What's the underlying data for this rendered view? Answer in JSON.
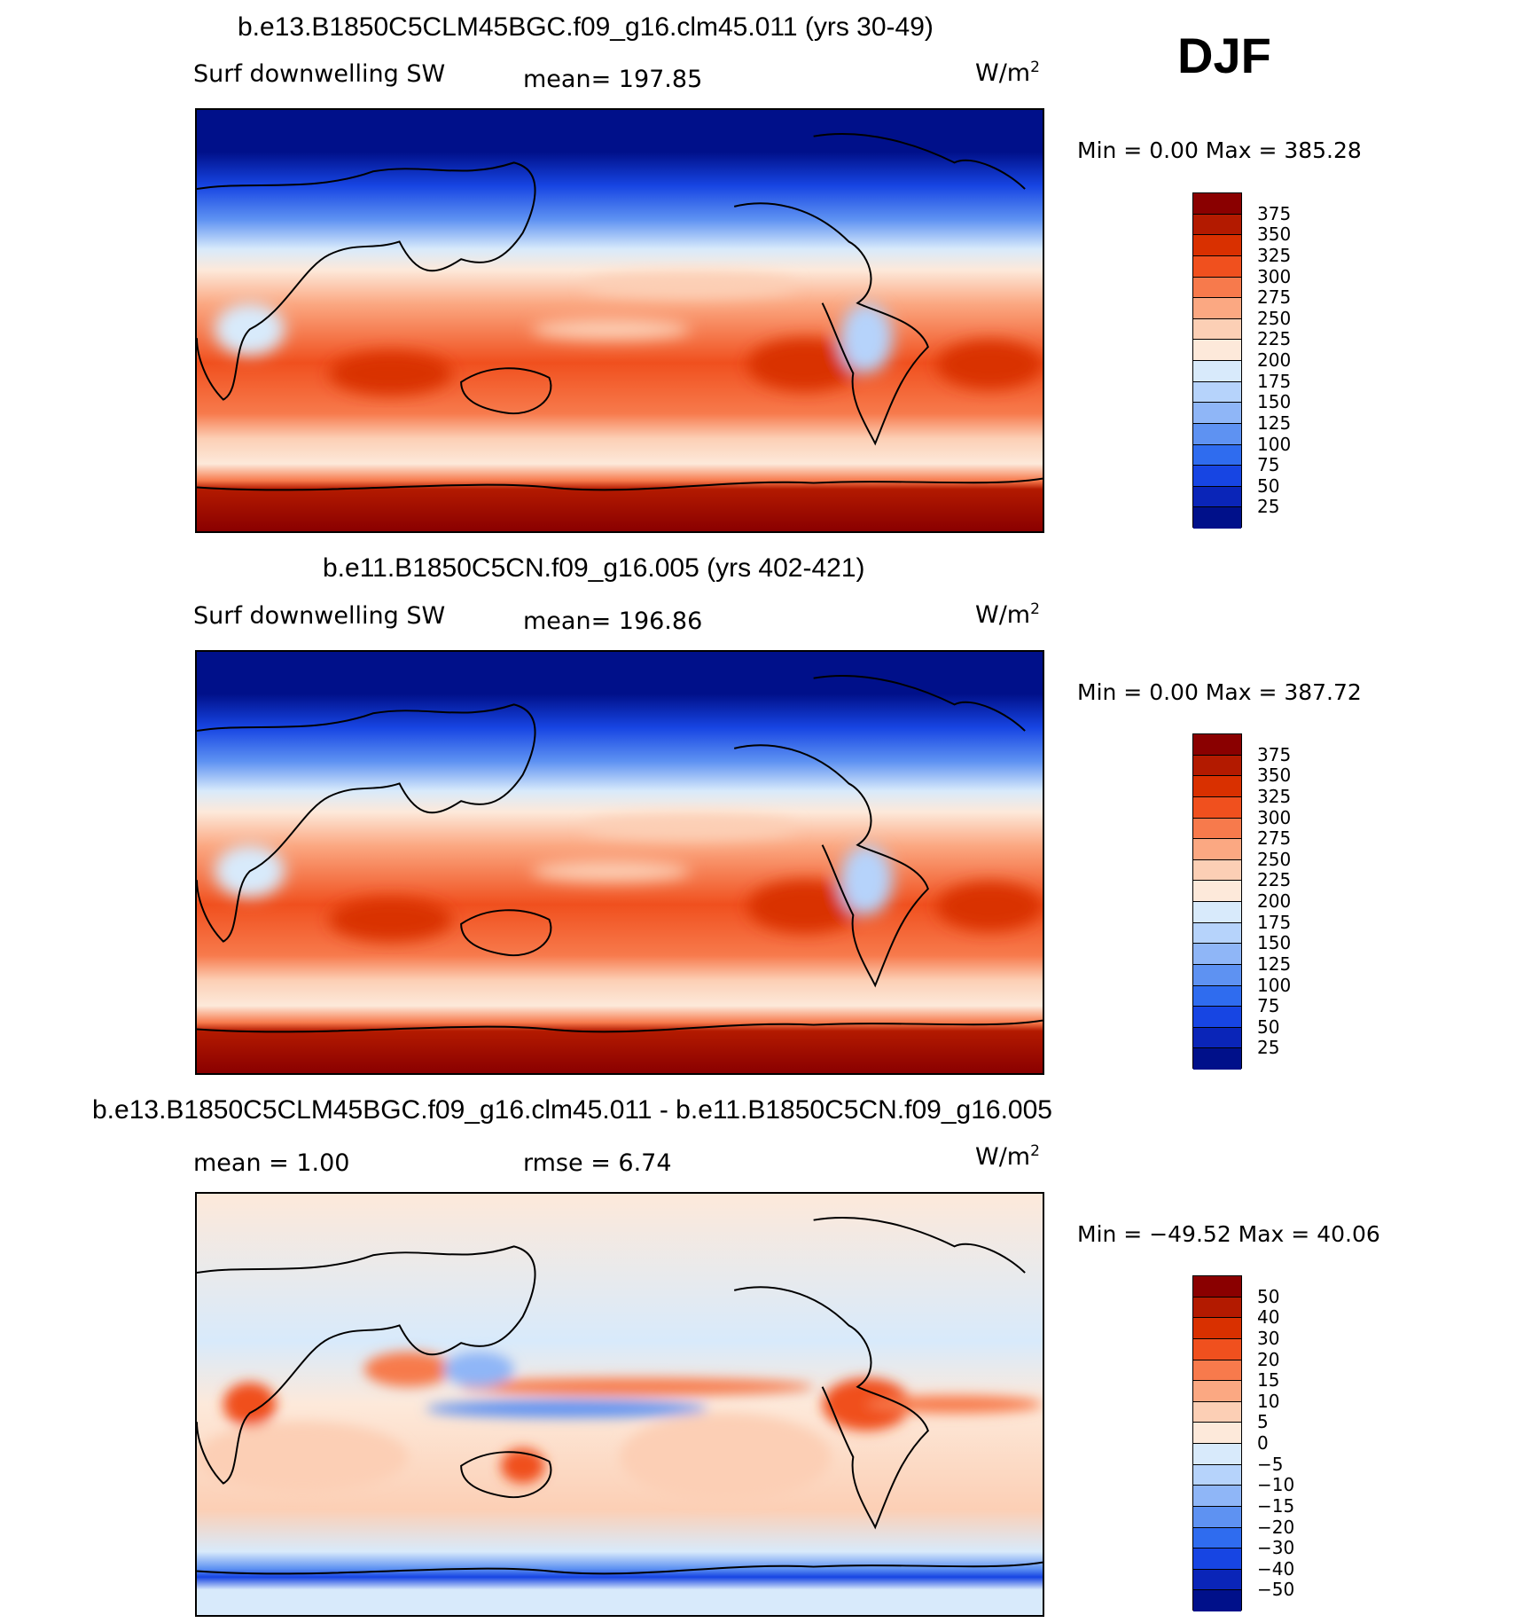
{
  "season": "DJF",
  "panels": [
    {
      "id": "case1",
      "title": "b.e13.B1850C5CLM45BGC.f09_g16.clm45.011 (yrs 30-49)",
      "variable": "Surf downwelling SW",
      "stat1": "mean=  197.85",
      "stat2": "",
      "unit": "W/m",
      "unit_sup": "2",
      "minmax": "Min =     0.00  Max  =  385.28",
      "levels": [
        "375",
        "350",
        "325",
        "300",
        "275",
        "250",
        "225",
        "200",
        "175",
        "150",
        "125",
        "100",
        "75",
        "50",
        "25"
      ],
      "colors": [
        "#8a0000",
        "#b31a00",
        "#d93000",
        "#f0501e",
        "#f77a4c",
        "#fba882",
        "#fccfb5",
        "#fde9da",
        "#d8eafb",
        "#b6d3fb",
        "#8fb6f7",
        "#5e92f2",
        "#2f6cef",
        "#1745e3",
        "#0a25b8",
        "#00108a"
      ]
    },
    {
      "id": "case2",
      "title": "b.e11.B1850C5CN.f09_g16.005 (yrs 402-421)",
      "variable": "Surf downwelling SW",
      "stat1": "mean=  196.86",
      "stat2": "",
      "unit": "W/m",
      "unit_sup": "2",
      "minmax": "Min =     0.00  Max  =  387.72",
      "levels": [
        "375",
        "350",
        "325",
        "300",
        "275",
        "250",
        "225",
        "200",
        "175",
        "150",
        "125",
        "100",
        "75",
        "50",
        "25"
      ],
      "colors": [
        "#8a0000",
        "#b31a00",
        "#d93000",
        "#f0501e",
        "#f77a4c",
        "#fba882",
        "#fccfb5",
        "#fde9da",
        "#d8eafb",
        "#b6d3fb",
        "#8fb6f7",
        "#5e92f2",
        "#2f6cef",
        "#1745e3",
        "#0a25b8",
        "#00108a"
      ]
    },
    {
      "id": "diff",
      "title": "b.e13.B1850C5CLM45BGC.f09_g16.clm45.011 - b.e11.B1850C5CN.f09_g16.005",
      "variable": "",
      "stat1": "mean  =     1.00",
      "stat2": "rmse  =     6.74",
      "unit": "W/m",
      "unit_sup": "2",
      "minmax": "Min  =  −49.52  Max  =    40.06",
      "levels": [
        "50",
        "40",
        "30",
        "20",
        "15",
        "10",
        "5",
        "0",
        "−5",
        "−10",
        "−15",
        "−20",
        "−30",
        "−40",
        "−50"
      ],
      "colors": [
        "#8a0000",
        "#b31a00",
        "#d93000",
        "#f0501e",
        "#f77a4c",
        "#fba882",
        "#fccfb5",
        "#fde9da",
        "#d8eafb",
        "#b6d3fb",
        "#8fb6f7",
        "#5e92f2",
        "#2f6cef",
        "#1745e3",
        "#0a25b8",
        "#00108a"
      ]
    }
  ]
}
